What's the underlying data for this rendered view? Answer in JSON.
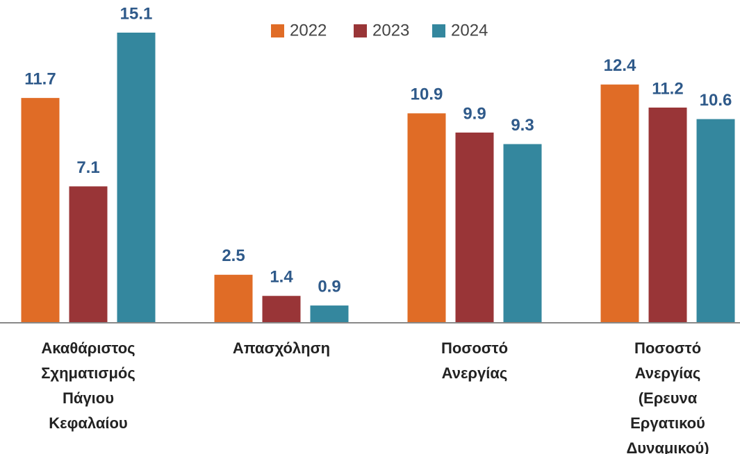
{
  "chart_data": {
    "type": "bar",
    "categories": [
      "Ακαθάριστος Σχηματισμός Πάγιου Κεφαλαίου",
      "Απασχόληση",
      "Ποσοστό Ανεργίας",
      "Ποσοστό Ανεργίας (Ερευνα Εργατικού Δυναμικού)"
    ],
    "series": [
      {
        "name": "2022",
        "color": "#e06c26",
        "values": [
          11.7,
          2.5,
          10.9,
          12.4
        ]
      },
      {
        "name": "2023",
        "color": "#993537",
        "values": [
          7.1,
          1.4,
          9.9,
          11.2
        ]
      },
      {
        "name": "2024",
        "color": "#34879e",
        "values": [
          15.1,
          0.9,
          9.3,
          10.6
        ]
      }
    ],
    "legend": "top"
  }
}
